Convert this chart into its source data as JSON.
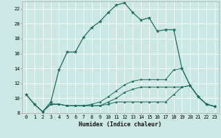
{
  "xlabel": "Humidex (Indice chaleur)",
  "ylabel": "",
  "background_color": "#cce8e5",
  "grid_color": "#ffffff",
  "line_color": "#1a6b5a",
  "xlim": [
    -0.5,
    23.5
  ],
  "ylim": [
    8,
    23
  ],
  "xticks": [
    0,
    1,
    2,
    3,
    4,
    5,
    6,
    7,
    8,
    9,
    10,
    11,
    12,
    13,
    14,
    15,
    16,
    17,
    18,
    19,
    20,
    21,
    22,
    23
  ],
  "yticks": [
    8,
    10,
    12,
    14,
    16,
    18,
    20,
    22
  ],
  "line1_x": [
    0,
    1,
    2,
    3,
    4,
    5,
    6,
    7,
    8,
    9,
    10,
    11,
    12,
    13,
    14,
    15,
    16,
    17,
    18,
    19,
    20,
    21,
    22,
    23
  ],
  "line1_y": [
    10.5,
    9.2,
    8.2,
    9.5,
    13.8,
    16.2,
    16.2,
    18.2,
    19.5,
    20.3,
    21.5,
    22.5,
    22.8,
    21.5,
    20.5,
    20.8,
    19.0,
    19.2,
    19.2,
    14.0,
    11.7,
    10.2,
    9.2,
    8.9
  ],
  "line2_x": [
    0,
    1,
    2,
    3,
    4,
    5,
    6,
    7,
    8,
    9,
    10,
    11,
    12,
    13,
    14,
    15,
    16,
    17,
    18,
    19,
    20,
    21,
    22,
    23
  ],
  "line2_y": [
    10.5,
    9.2,
    8.2,
    9.2,
    9.2,
    9.0,
    9.0,
    9.0,
    9.0,
    9.0,
    9.2,
    9.5,
    9.5,
    9.5,
    9.5,
    9.5,
    9.5,
    9.5,
    10.5,
    11.5,
    11.7,
    10.2,
    9.2,
    8.9
  ],
  "line3_x": [
    0,
    1,
    2,
    3,
    4,
    5,
    6,
    7,
    8,
    9,
    10,
    11,
    12,
    13,
    14,
    15,
    16,
    17,
    18,
    19,
    20,
    21,
    22,
    23
  ],
  "line3_y": [
    10.5,
    9.2,
    8.2,
    9.2,
    9.2,
    9.0,
    9.0,
    9.0,
    9.2,
    9.5,
    10.2,
    11.0,
    11.8,
    12.3,
    12.5,
    12.5,
    12.5,
    12.5,
    13.8,
    14.0,
    11.7,
    10.2,
    9.2,
    8.9
  ],
  "line4_x": [
    2,
    3,
    4,
    5,
    6,
    7,
    8,
    9,
    10,
    11,
    12,
    13,
    14,
    15,
    16,
    17,
    18,
    19,
    20,
    21,
    22,
    23
  ],
  "line4_y": [
    8.2,
    9.2,
    9.2,
    9.0,
    9.0,
    9.0,
    9.0,
    9.0,
    9.5,
    10.0,
    10.8,
    11.2,
    11.5,
    11.5,
    11.5,
    11.5,
    11.5,
    11.5,
    11.7,
    10.2,
    9.2,
    8.9
  ]
}
